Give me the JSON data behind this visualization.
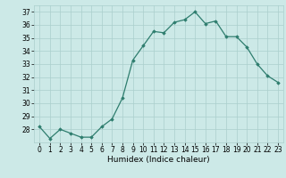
{
  "x": [
    0,
    1,
    2,
    3,
    4,
    5,
    6,
    7,
    8,
    9,
    10,
    11,
    12,
    13,
    14,
    15,
    16,
    17,
    18,
    19,
    20,
    21,
    22,
    23
  ],
  "y": [
    28.2,
    27.3,
    28.0,
    27.7,
    27.4,
    27.4,
    28.2,
    28.8,
    30.4,
    33.3,
    34.4,
    35.5,
    35.4,
    36.2,
    36.4,
    37.0,
    36.1,
    36.3,
    35.1,
    35.1,
    34.3,
    33.0,
    32.1,
    31.6
  ],
  "line_color": "#2e7d6e",
  "marker": "D",
  "marker_size": 1.8,
  "bg_color": "#cce9e7",
  "grid_color": "#aacfcc",
  "xlabel": "Humidex (Indice chaleur)",
  "xlim": [
    -0.5,
    23.5
  ],
  "ylim": [
    27.0,
    37.5
  ],
  "yticks": [
    28,
    29,
    30,
    31,
    32,
    33,
    34,
    35,
    36,
    37
  ],
  "xticks": [
    0,
    1,
    2,
    3,
    4,
    5,
    6,
    7,
    8,
    9,
    10,
    11,
    12,
    13,
    14,
    15,
    16,
    17,
    18,
    19,
    20,
    21,
    22,
    23
  ],
  "xlabel_fontsize": 6.5,
  "tick_fontsize": 5.5,
  "linewidth": 0.9
}
